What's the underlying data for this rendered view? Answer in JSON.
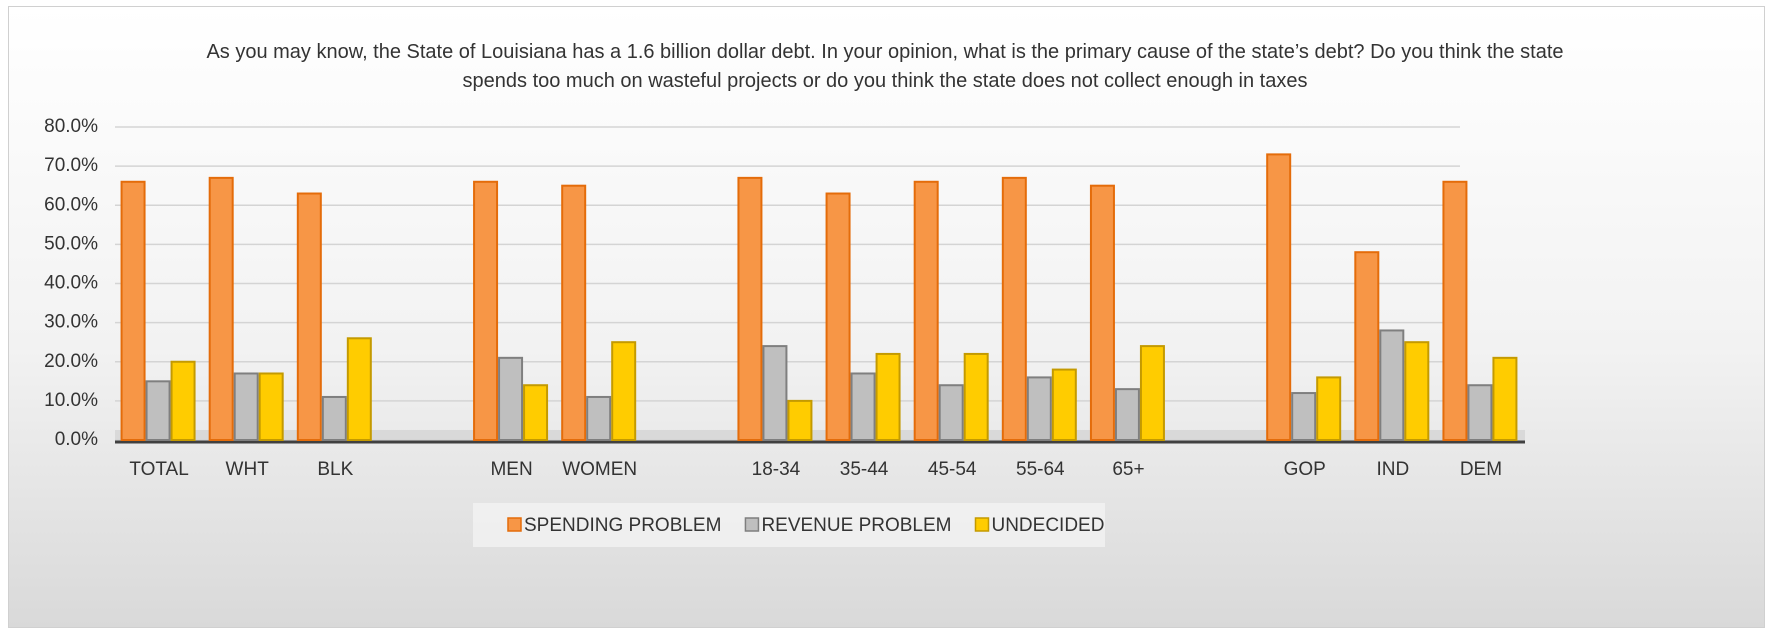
{
  "chart_data": {
    "type": "bar",
    "title": "As you may know, the State of Louisiana has a 1.6 billion dollar debt.  In your opinion, what is the primary cause of the state’s debt?  Do you think the state spends too much on wasteful projects or do you think the state does not collect enough in taxes",
    "categories": [
      "TOTAL",
      "WHT",
      "BLK",
      null,
      "MEN",
      "WOMEN",
      null,
      "18-34",
      "35-44",
      "45-54",
      "55-64",
      "65+",
      null,
      "GOP",
      "IND",
      "DEM"
    ],
    "series": [
      {
        "name": "SPENDING PROBLEM",
        "color": "#F79646",
        "values": [
          66,
          67,
          63,
          null,
          66,
          65,
          null,
          67,
          63,
          66,
          67,
          65,
          null,
          73,
          48,
          66
        ]
      },
      {
        "name": "REVENUE PROBLEM",
        "color": "#BFBFBF",
        "values": [
          15,
          17,
          11,
          null,
          21,
          11,
          null,
          24,
          17,
          14,
          16,
          13,
          null,
          12,
          28,
          14
        ]
      },
      {
        "name": "UNDECIDED",
        "color": "#FFCC00",
        "values": [
          20,
          17,
          26,
          null,
          14,
          25,
          null,
          10,
          22,
          22,
          18,
          24,
          null,
          16,
          25,
          21
        ]
      }
    ],
    "ylim": [
      0,
      80
    ],
    "yticks": [
      {
        "value": 0,
        "label": "0.0%"
      },
      {
        "value": 10,
        "label": "10.0%"
      },
      {
        "value": 20,
        "label": "20.0%"
      },
      {
        "value": 30,
        "label": "30.0%"
      },
      {
        "value": 40,
        "label": "40.0%"
      },
      {
        "value": 50,
        "label": "50.0%"
      },
      {
        "value": 60,
        "label": "60.0%"
      },
      {
        "value": 70,
        "label": "70.0%"
      },
      {
        "value": 80,
        "label": "80.0%"
      }
    ],
    "grid": true,
    "legend": "bottom"
  }
}
